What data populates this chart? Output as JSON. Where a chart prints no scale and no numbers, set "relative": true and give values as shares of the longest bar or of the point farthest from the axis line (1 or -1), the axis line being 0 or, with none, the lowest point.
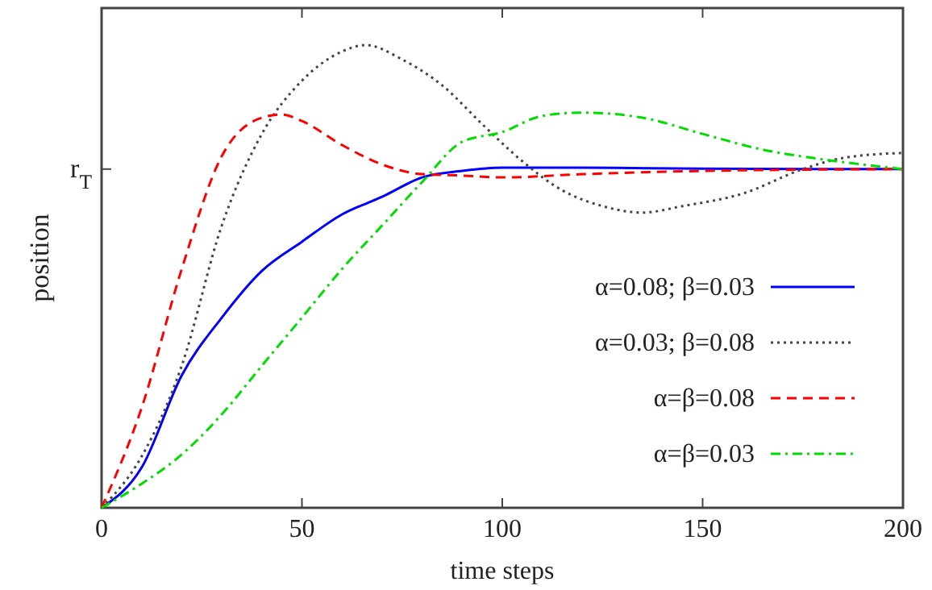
{
  "chart_data": {
    "type": "line",
    "relative": true,
    "xlabel": "time steps",
    "ylabel": "position",
    "xlim": [
      0,
      200
    ],
    "xticks": [
      0,
      50,
      100,
      150,
      200
    ],
    "legend": "right",
    "annotations": [
      "r$_{T}$"
    ],
    "series": [
      {
        "name": "α=0.08; β=0.03",
        "color": "#0000ff",
        "line_style": "solid",
        "x": [
          0,
          10,
          20,
          30,
          40,
          50,
          60,
          70,
          80,
          90,
          100,
          120,
          150,
          200
        ],
        "values": [
          0,
          0.087,
          0.286,
          0.411,
          0.512,
          0.575,
          0.634,
          0.672,
          0.714,
          0.728,
          0.735,
          0.735,
          0.733,
          0.732
        ]
      },
      {
        "name": "α=0.03; β=0.08",
        "color": "#444444",
        "line_style": "dotted",
        "x": [
          0,
          10,
          20,
          30,
          40,
          50,
          60,
          66,
          75,
          85,
          95,
          105,
          115,
          125,
          135,
          145,
          160,
          175,
          185,
          200
        ],
        "values": [
          0,
          0.111,
          0.307,
          0.61,
          0.808,
          0.923,
          0.986,
          1,
          0.969,
          0.913,
          0.829,
          0.749,
          0.686,
          0.652,
          0.638,
          0.652,
          0.679,
          0.732,
          0.756,
          0.767
        ]
      },
      {
        "name": "α=β=0.08",
        "color": "#ff0000",
        "line_style": "dashed",
        "x": [
          0,
          10,
          20,
          30,
          40,
          45,
          50,
          60,
          70,
          80,
          90,
          100,
          120,
          150,
          200
        ],
        "values": [
          0,
          0.216,
          0.516,
          0.76,
          0.843,
          0.85,
          0.836,
          0.784,
          0.742,
          0.721,
          0.718,
          0.714,
          0.721,
          0.728,
          0.732
        ]
      },
      {
        "name": "α=β=0.03",
        "color": "#00dd00",
        "line_style": "dashdot",
        "x": [
          0,
          10,
          20,
          30,
          40,
          50,
          60,
          70,
          80,
          90,
          100,
          110,
          120,
          135,
          150,
          165,
          180,
          200
        ],
        "values": [
          0,
          0.052,
          0.115,
          0.202,
          0.307,
          0.411,
          0.516,
          0.61,
          0.704,
          0.791,
          0.812,
          0.847,
          0.854,
          0.843,
          0.808,
          0.774,
          0.753,
          0.732
        ]
      }
    ]
  }
}
